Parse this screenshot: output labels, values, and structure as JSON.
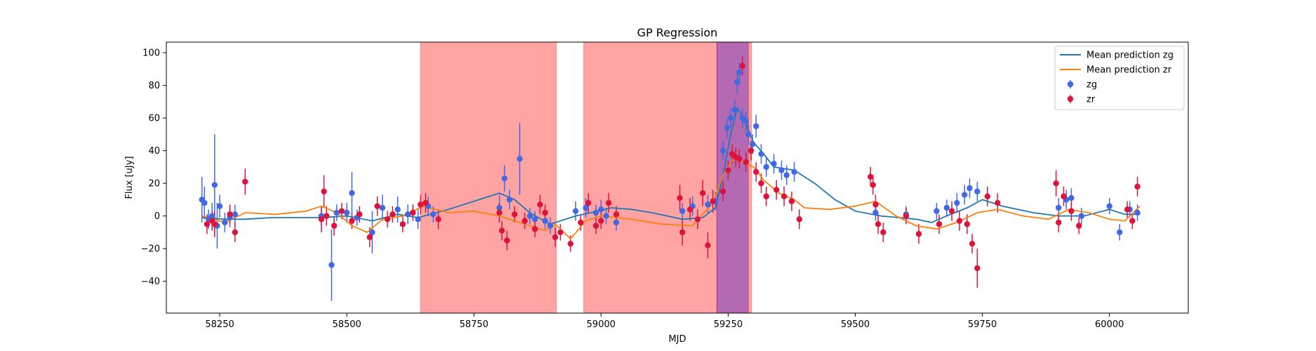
{
  "chart_data": {
    "type": "scatter",
    "title": "GP Regression",
    "xlabel": "MJD",
    "ylabel": "Flux [uJy]",
    "xlim": [
      58145,
      60155
    ],
    "ylim": [
      -59.5,
      106.5
    ],
    "xticks": [
      58250,
      58500,
      58750,
      59000,
      59250,
      59500,
      59750,
      60000
    ],
    "yticks": [
      -40,
      -20,
      0,
      20,
      40,
      60,
      80,
      100
    ],
    "grid": false,
    "legend_position": "top-right",
    "colors": {
      "zg_mean": "#1f77b4",
      "zr_mean": "#ff7f0e",
      "zg_points": "#4169e1",
      "zr_points": "#dc143c",
      "span_red": "#ff6666",
      "span_purple": "#8b1a89"
    },
    "spans": [
      {
        "x0": 58645,
        "x1": 58912,
        "color": "red"
      },
      {
        "x0": 58966,
        "x1": 59228,
        "color": "red"
      },
      {
        "x0": 59228,
        "x1": 59290,
        "color": "purple"
      },
      {
        "x0": 59290,
        "x1": 59296,
        "color": "red"
      }
    ],
    "legend": [
      {
        "label": "Mean prediction zg",
        "kind": "line",
        "series": "zg_mean"
      },
      {
        "label": "Mean prediction zr",
        "kind": "line",
        "series": "zr_mean"
      },
      {
        "label": "zg",
        "kind": "point",
        "series": "zg_points"
      },
      {
        "label": "zr",
        "kind": "point",
        "series": "zr_points"
      }
    ],
    "mean_zg": [
      [
        58215,
        -1
      ],
      [
        58260,
        -2
      ],
      [
        58300,
        -2
      ],
      [
        58350,
        -1
      ],
      [
        58400,
        -1
      ],
      [
        58450,
        -1
      ],
      [
        58500,
        0
      ],
      [
        58550,
        -3
      ],
      [
        58600,
        1
      ],
      [
        58640,
        -1
      ],
      [
        58700,
        4
      ],
      [
        58760,
        10
      ],
      [
        58800,
        14
      ],
      [
        58830,
        10
      ],
      [
        58860,
        2
      ],
      [
        58900,
        -5
      ],
      [
        58950,
        0
      ],
      [
        58980,
        2
      ],
      [
        59020,
        5
      ],
      [
        59060,
        4
      ],
      [
        59100,
        2
      ],
      [
        59160,
        -2
      ],
      [
        59200,
        -1
      ],
      [
        59225,
        5
      ],
      [
        59240,
        25
      ],
      [
        59255,
        50
      ],
      [
        59268,
        66
      ],
      [
        59280,
        60
      ],
      [
        59300,
        45
      ],
      [
        59320,
        38
      ],
      [
        59340,
        30
      ],
      [
        59380,
        28
      ],
      [
        59420,
        20
      ],
      [
        59460,
        10
      ],
      [
        59500,
        3
      ],
      [
        59550,
        0
      ],
      [
        59620,
        -2
      ],
      [
        59650,
        -4
      ],
      [
        59680,
        0
      ],
      [
        59720,
        5
      ],
      [
        59750,
        10
      ],
      [
        59790,
        6
      ],
      [
        59850,
        2
      ],
      [
        59900,
        0
      ],
      [
        59950,
        0
      ],
      [
        60000,
        4
      ],
      [
        60030,
        1
      ],
      [
        60060,
        1
      ]
    ],
    "mean_zr": [
      [
        58215,
        0
      ],
      [
        58260,
        -4
      ],
      [
        58300,
        2
      ],
      [
        58360,
        1
      ],
      [
        58420,
        3
      ],
      [
        58450,
        6
      ],
      [
        58480,
        2
      ],
      [
        58510,
        -6
      ],
      [
        58540,
        -10
      ],
      [
        58570,
        -2
      ],
      [
        58610,
        0
      ],
      [
        58650,
        6
      ],
      [
        58700,
        2
      ],
      [
        58750,
        3
      ],
      [
        58800,
        0
      ],
      [
        58850,
        -5
      ],
      [
        58890,
        -9
      ],
      [
        58910,
        -5
      ],
      [
        58940,
        -14
      ],
      [
        58970,
        -3
      ],
      [
        59000,
        0
      ],
      [
        59060,
        -2
      ],
      [
        59120,
        -5
      ],
      [
        59180,
        -6
      ],
      [
        59220,
        8
      ],
      [
        59240,
        25
      ],
      [
        59260,
        35
      ],
      [
        59280,
        33
      ],
      [
        59300,
        30
      ],
      [
        59320,
        22
      ],
      [
        59350,
        14
      ],
      [
        59380,
        10
      ],
      [
        59400,
        5
      ],
      [
        59450,
        4
      ],
      [
        59500,
        6
      ],
      [
        59540,
        9
      ],
      [
        59580,
        0
      ],
      [
        59620,
        -6
      ],
      [
        59660,
        -8
      ],
      [
        59700,
        -4
      ],
      [
        59740,
        2
      ],
      [
        59780,
        4
      ],
      [
        59830,
        0
      ],
      [
        59880,
        -2
      ],
      [
        59920,
        4
      ],
      [
        59960,
        2
      ],
      [
        60000,
        -2
      ],
      [
        60030,
        -3
      ],
      [
        60060,
        6
      ]
    ],
    "zg_points": [
      [
        58215,
        10,
        14
      ],
      [
        58220,
        8,
        10
      ],
      [
        58228,
        -2,
        6
      ],
      [
        58235,
        0,
        8
      ],
      [
        58240,
        19,
        31
      ],
      [
        58245,
        -6,
        14
      ],
      [
        58250,
        6,
        7
      ],
      [
        58260,
        -4,
        6
      ],
      [
        58270,
        -1,
        6
      ],
      [
        58280,
        1,
        6
      ],
      [
        58450,
        0,
        6
      ],
      [
        58470,
        -30,
        22
      ],
      [
        58480,
        2,
        5
      ],
      [
        58500,
        2,
        6
      ],
      [
        58510,
        14,
        13
      ],
      [
        58520,
        -1,
        5
      ],
      [
        58550,
        -10,
        13
      ],
      [
        58570,
        5,
        8
      ],
      [
        58600,
        4,
        8
      ],
      [
        58620,
        1,
        6
      ],
      [
        58640,
        -2,
        6
      ],
      [
        58660,
        6,
        6
      ],
      [
        58670,
        1,
        5
      ],
      [
        58800,
        5,
        8
      ],
      [
        58810,
        23,
        8
      ],
      [
        58820,
        10,
        6
      ],
      [
        58840,
        35,
        22
      ],
      [
        58860,
        0,
        5
      ],
      [
        58870,
        -2,
        5
      ],
      [
        58890,
        -3,
        5
      ],
      [
        58900,
        -6,
        5
      ],
      [
        58950,
        3,
        6
      ],
      [
        58970,
        5,
        6
      ],
      [
        58990,
        2,
        5
      ],
      [
        59000,
        4,
        6
      ],
      [
        59010,
        0,
        5
      ],
      [
        59030,
        -4,
        5
      ],
      [
        59160,
        3,
        5
      ],
      [
        59180,
        6,
        6
      ],
      [
        59210,
        7,
        6
      ],
      [
        59225,
        9,
        6
      ],
      [
        59240,
        40,
        6
      ],
      [
        59248,
        54,
        6
      ],
      [
        59255,
        60,
        6
      ],
      [
        59263,
        65,
        6
      ],
      [
        59268,
        82,
        7
      ],
      [
        59272,
        88,
        6
      ],
      [
        59278,
        60,
        6
      ],
      [
        59285,
        58,
        6
      ],
      [
        59290,
        50,
        6
      ],
      [
        59298,
        44,
        6
      ],
      [
        59305,
        55,
        7
      ],
      [
        59315,
        38,
        6
      ],
      [
        59325,
        30,
        6
      ],
      [
        59340,
        32,
        6
      ],
      [
        59355,
        28,
        6
      ],
      [
        59365,
        25,
        6
      ],
      [
        59380,
        27,
        6
      ],
      [
        59540,
        2,
        5
      ],
      [
        59600,
        1,
        5
      ],
      [
        59660,
        3,
        5
      ],
      [
        59680,
        5,
        5
      ],
      [
        59700,
        8,
        6
      ],
      [
        59715,
        13,
        6
      ],
      [
        59725,
        17,
        6
      ],
      [
        59740,
        15,
        6
      ],
      [
        59900,
        5,
        6
      ],
      [
        59915,
        10,
        6
      ],
      [
        59925,
        11,
        6
      ],
      [
        59945,
        0,
        5
      ],
      [
        60000,
        6,
        5
      ],
      [
        60020,
        -10,
        5
      ],
      [
        60040,
        4,
        5
      ],
      [
        60055,
        2,
        5
      ]
    ],
    "zr_points": [
      [
        58225,
        -5,
        6
      ],
      [
        58235,
        -3,
        6
      ],
      [
        58240,
        -5,
        8
      ],
      [
        58270,
        1,
        6
      ],
      [
        58280,
        -10,
        6
      ],
      [
        58300,
        21,
        8
      ],
      [
        58450,
        -2,
        8
      ],
      [
        58455,
        15,
        10
      ],
      [
        58460,
        0,
        6
      ],
      [
        58475,
        -6,
        6
      ],
      [
        58490,
        3,
        5
      ],
      [
        58510,
        -3,
        5
      ],
      [
        58525,
        1,
        5
      ],
      [
        58545,
        -13,
        6
      ],
      [
        58560,
        6,
        6
      ],
      [
        58580,
        -2,
        5
      ],
      [
        58590,
        1,
        5
      ],
      [
        58610,
        -5,
        5
      ],
      [
        58630,
        2,
        5
      ],
      [
        58645,
        7,
        6
      ],
      [
        58655,
        8,
        6
      ],
      [
        58680,
        -2,
        6
      ],
      [
        58800,
        2,
        6
      ],
      [
        58805,
        -9,
        6
      ],
      [
        58815,
        -15,
        6
      ],
      [
        58830,
        1,
        5
      ],
      [
        58850,
        -3,
        5
      ],
      [
        58870,
        -8,
        5
      ],
      [
        58880,
        7,
        6
      ],
      [
        58890,
        2,
        5
      ],
      [
        58910,
        -13,
        6
      ],
      [
        58920,
        -10,
        5
      ],
      [
        58940,
        -17,
        5
      ],
      [
        58960,
        -4,
        5
      ],
      [
        58975,
        8,
        6
      ],
      [
        58990,
        -6,
        5
      ],
      [
        59000,
        -3,
        5
      ],
      [
        59015,
        8,
        6
      ],
      [
        59030,
        1,
        5
      ],
      [
        59155,
        11,
        8
      ],
      [
        59160,
        -10,
        8
      ],
      [
        59175,
        4,
        7
      ],
      [
        59190,
        -2,
        6
      ],
      [
        59200,
        14,
        8
      ],
      [
        59210,
        -18,
        8
      ],
      [
        59220,
        9,
        7
      ],
      [
        59240,
        15,
        6
      ],
      [
        59250,
        28,
        6
      ],
      [
        59258,
        38,
        6
      ],
      [
        59265,
        36,
        6
      ],
      [
        59272,
        35,
        6
      ],
      [
        59278,
        92,
        6
      ],
      [
        59285,
        33,
        6
      ],
      [
        59295,
        40,
        6
      ],
      [
        59305,
        27,
        6
      ],
      [
        59315,
        20,
        6
      ],
      [
        59325,
        12,
        6
      ],
      [
        59345,
        16,
        6
      ],
      [
        59360,
        12,
        6
      ],
      [
        59375,
        9,
        6
      ],
      [
        59390,
        -2,
        6
      ],
      [
        59530,
        24,
        6
      ],
      [
        59535,
        19,
        6
      ],
      [
        59540,
        7,
        6
      ],
      [
        59545,
        -5,
        6
      ],
      [
        59555,
        -10,
        6
      ],
      [
        59600,
        0,
        5
      ],
      [
        59625,
        -11,
        6
      ],
      [
        59665,
        -5,
        6
      ],
      [
        59690,
        3,
        6
      ],
      [
        59705,
        -3,
        6
      ],
      [
        59720,
        -5,
        6
      ],
      [
        59730,
        -17,
        6
      ],
      [
        59740,
        -32,
        12
      ],
      [
        59760,
        12,
        6
      ],
      [
        59780,
        8,
        6
      ],
      [
        59895,
        20,
        8
      ],
      [
        59900,
        -4,
        6
      ],
      [
        59910,
        12,
        6
      ],
      [
        59925,
        3,
        6
      ],
      [
        59940,
        -6,
        5
      ],
      [
        60035,
        4,
        5
      ],
      [
        60045,
        -3,
        5
      ],
      [
        60055,
        18,
        6
      ]
    ]
  }
}
